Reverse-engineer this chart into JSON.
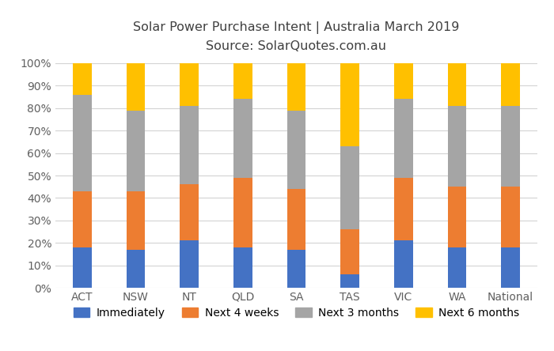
{
  "categories": [
    "ACT",
    "NSW",
    "NT",
    "QLD",
    "SA",
    "TAS",
    "VIC",
    "WA",
    "National"
  ],
  "immediately": [
    18,
    17,
    21,
    18,
    17,
    6,
    21,
    18,
    18
  ],
  "next_4weeks": [
    25,
    26,
    25,
    31,
    27,
    20,
    28,
    27,
    27
  ],
  "next_3months": [
    43,
    36,
    35,
    35,
    35,
    37,
    35,
    36,
    36
  ],
  "next_6months": [
    14,
    21,
    19,
    16,
    21,
    37,
    16,
    19,
    19
  ],
  "color_immediately": "#4472C4",
  "color_next4weeks": "#ED7D31",
  "color_next3months": "#A5A5A5",
  "color_next6months": "#FFC000",
  "title_line1": "Solar Power Purchase Intent | Australia March 2019",
  "title_line2": "Source: SolarQuotes.com.au",
  "ylim": [
    0,
    100
  ],
  "ytick_labels": [
    "0%",
    "10%",
    "20%",
    "30%",
    "40%",
    "50%",
    "60%",
    "70%",
    "80%",
    "90%",
    "100%"
  ],
  "legend_labels": [
    "Immediately",
    "Next 4 weeks",
    "Next 3 months",
    "Next 6 months"
  ],
  "background_color": "#FFFFFF",
  "grid_color": "#D3D3D3",
  "title_color": "#404040",
  "tick_color": "#606060",
  "bar_width": 0.35,
  "figsize": [
    7.0,
    4.44
  ],
  "dpi": 100
}
